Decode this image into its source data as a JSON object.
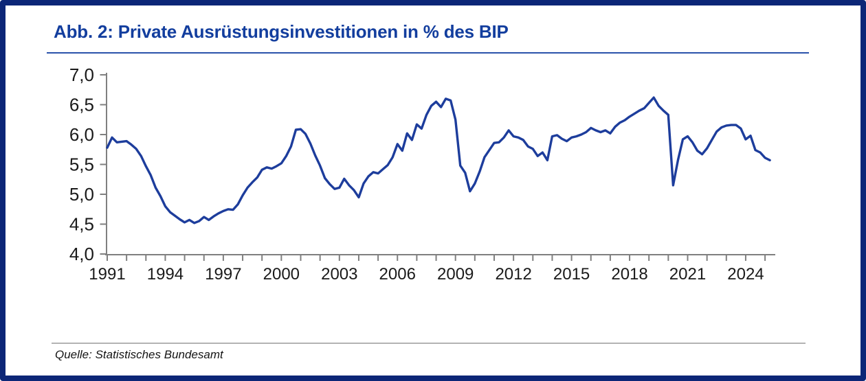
{
  "frame": {
    "border_color": "#0c2677"
  },
  "header": {
    "title": "Abb. 2: Private Ausrüstungsinvestitionen in % des BIP",
    "title_color": "#133e9e",
    "rule_color": "#2a52aa"
  },
  "source": {
    "text": "Quelle: Statistisches Bundesamt"
  },
  "chart_data": {
    "type": "line",
    "title": "Abb. 2: Private Ausrüstungsinvestitionen in % des BIP",
    "unit": "% des BIP",
    "frequency": "quarterly",
    "x_start": 1991.0,
    "x_step": 0.25,
    "xlim": [
      1991,
      2025.5
    ],
    "ylim": [
      4.0,
      7.0
    ],
    "grid": false,
    "legend": null,
    "line_color": "#1d3d9c",
    "axis_color": "#7f7f7f",
    "tick_label_color": "#1a1a1a",
    "y_ticks": [
      4.0,
      4.5,
      5.0,
      5.5,
      6.0,
      6.5,
      7.0
    ],
    "y_tick_labels": [
      "4,0",
      "4,5",
      "5,0",
      "5,5",
      "6,0",
      "6,5",
      "7,0"
    ],
    "x_tick_years": [
      1991,
      1992,
      1993,
      1994,
      1995,
      1996,
      1997,
      1998,
      1999,
      2000,
      2001,
      2002,
      2003,
      2004,
      2005,
      2006,
      2007,
      2008,
      2009,
      2010,
      2011,
      2012,
      2013,
      2014,
      2015,
      2016,
      2017,
      2018,
      2019,
      2020,
      2021,
      2022,
      2023,
      2024,
      2025
    ],
    "x_label_years": [
      "1991",
      "1994",
      "1997",
      "2000",
      "2003",
      "2006",
      "2009",
      "2012",
      "2015",
      "2018",
      "2021",
      "2024"
    ],
    "values": [
      5.78,
      5.95,
      5.87,
      5.88,
      5.89,
      5.83,
      5.76,
      5.64,
      5.47,
      5.32,
      5.11,
      4.97,
      4.8,
      4.7,
      4.64,
      4.58,
      4.53,
      4.57,
      4.52,
      4.55,
      4.62,
      4.57,
      4.63,
      4.68,
      4.72,
      4.75,
      4.74,
      4.83,
      4.98,
      5.11,
      5.2,
      5.28,
      5.41,
      5.45,
      5.43,
      5.47,
      5.52,
      5.64,
      5.8,
      6.08,
      6.09,
      6.01,
      5.85,
      5.65,
      5.48,
      5.27,
      5.17,
      5.09,
      5.11,
      5.26,
      5.15,
      5.07,
      4.95,
      5.18,
      5.3,
      5.37,
      5.35,
      5.42,
      5.49,
      5.62,
      5.84,
      5.73,
      6.02,
      5.91,
      6.17,
      6.1,
      6.33,
      6.48,
      6.55,
      6.46,
      6.6,
      6.57,
      6.25,
      5.48,
      5.36,
      5.05,
      5.18,
      5.38,
      5.62,
      5.74,
      5.86,
      5.87,
      5.95,
      6.07,
      5.97,
      5.95,
      5.91,
      5.8,
      5.76,
      5.64,
      5.7,
      5.57,
      5.97,
      5.99,
      5.93,
      5.89,
      5.95,
      5.97,
      6.0,
      6.04,
      6.11,
      6.07,
      6.04,
      6.07,
      6.02,
      6.13,
      6.2,
      6.24,
      6.3,
      6.35,
      6.4,
      6.44,
      6.53,
      6.62,
      6.48,
      6.4,
      6.33,
      5.15,
      5.57,
      5.92,
      5.97,
      5.87,
      5.73,
      5.67,
      5.77,
      5.91,
      6.05,
      6.12,
      6.15,
      6.16,
      6.16,
      6.1,
      5.92,
      5.98,
      5.74,
      5.7,
      5.61,
      5.57
    ]
  }
}
